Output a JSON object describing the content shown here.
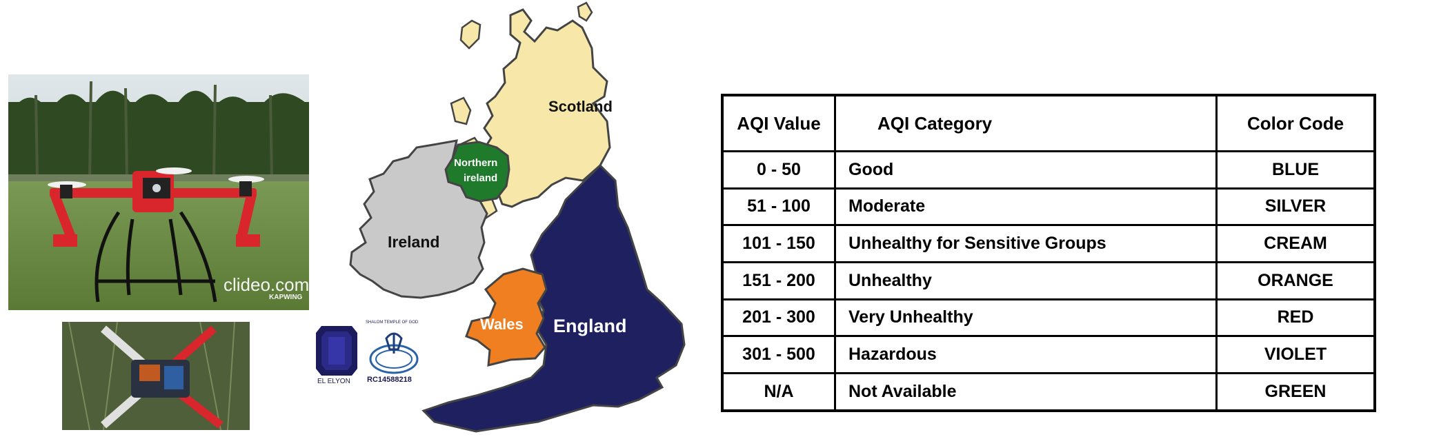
{
  "photos": {
    "top_watermark": "clideo.com",
    "top_watermark_sub": "KAPWING"
  },
  "logos": {
    "gem_label": "EL ELYON",
    "seal_top_text": "SHALOM TEMPLE OF GOD",
    "seal_number": "RC14588218"
  },
  "map": {
    "colors": {
      "scotland": "#f7e8a9",
      "northern_ireland": "#1f7a2c",
      "ireland": "#c9c9c9",
      "england": "#1e2060",
      "wales": "#f07f22"
    },
    "labels": {
      "scotland": "Scotland",
      "northern_ireland_line1": "Northern",
      "northern_ireland_line2": "ireland",
      "ireland": "Ireland",
      "wales": "Wales",
      "england": "England"
    }
  },
  "aqi_table": {
    "headers": [
      "AQI Value",
      "AQI Category",
      "Color Code"
    ],
    "rows": [
      {
        "value": "0 - 50",
        "category": "Good",
        "color": "BLUE"
      },
      {
        "value": "51 - 100",
        "category": "Moderate",
        "color": "SILVER"
      },
      {
        "value": "101 - 150",
        "category": "Unhealthy for Sensitive Groups",
        "color": "CREAM"
      },
      {
        "value": "151 - 200",
        "category": "Unhealthy",
        "color": "ORANGE"
      },
      {
        "value": "201 - 300",
        "category": "Very Unhealthy",
        "color": "RED"
      },
      {
        "value": "301 - 500",
        "category": "Hazardous",
        "color": "VIOLET"
      },
      {
        "value": "N/A",
        "category": "Not Available",
        "color": "GREEN"
      }
    ]
  }
}
